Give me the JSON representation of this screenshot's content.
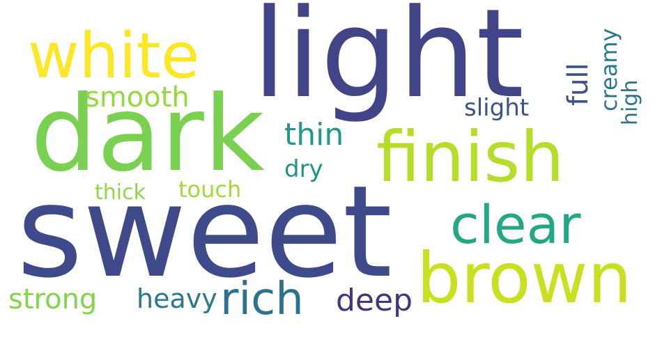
{
  "words": [
    {
      "key": "light",
      "text": "light",
      "color": "#414487"
    },
    {
      "key": "white",
      "text": "white",
      "color": "#fde725"
    },
    {
      "key": "dark",
      "text": "dark",
      "color": "#7ad151"
    },
    {
      "key": "finish",
      "text": "finish",
      "color": "#b5de2b"
    },
    {
      "key": "sweet",
      "text": "sweet",
      "color": "#3e4a89"
    },
    {
      "key": "clear",
      "text": "clear",
      "color": "#22a884"
    },
    {
      "key": "brown",
      "text": "brown",
      "color": "#c8e020"
    },
    {
      "key": "rich",
      "text": "rich",
      "color": "#2c728e"
    },
    {
      "key": "smooth",
      "text": "smooth",
      "color": "#95d840"
    },
    {
      "key": "thin",
      "text": "thin",
      "color": "#1f988b"
    },
    {
      "key": "dry",
      "text": "dry",
      "color": "#21918c"
    },
    {
      "key": "full",
      "text": "full",
      "color": "#3b528b"
    },
    {
      "key": "slight",
      "text": "slight",
      "color": "#3b528b"
    },
    {
      "key": "creamy",
      "text": "creamy",
      "color": "#2a788e"
    },
    {
      "key": "high",
      "text": "high",
      "color": "#2c728e"
    },
    {
      "key": "thick",
      "text": "thick",
      "color": "#8fd744"
    },
    {
      "key": "touch",
      "text": "touch",
      "color": "#a0da39"
    },
    {
      "key": "strong",
      "text": "strong",
      "color": "#84d44b"
    },
    {
      "key": "heavy",
      "text": "heavy",
      "color": "#2a788e"
    },
    {
      "key": "deep",
      "text": "deep",
      "color": "#46337e"
    }
  ]
}
